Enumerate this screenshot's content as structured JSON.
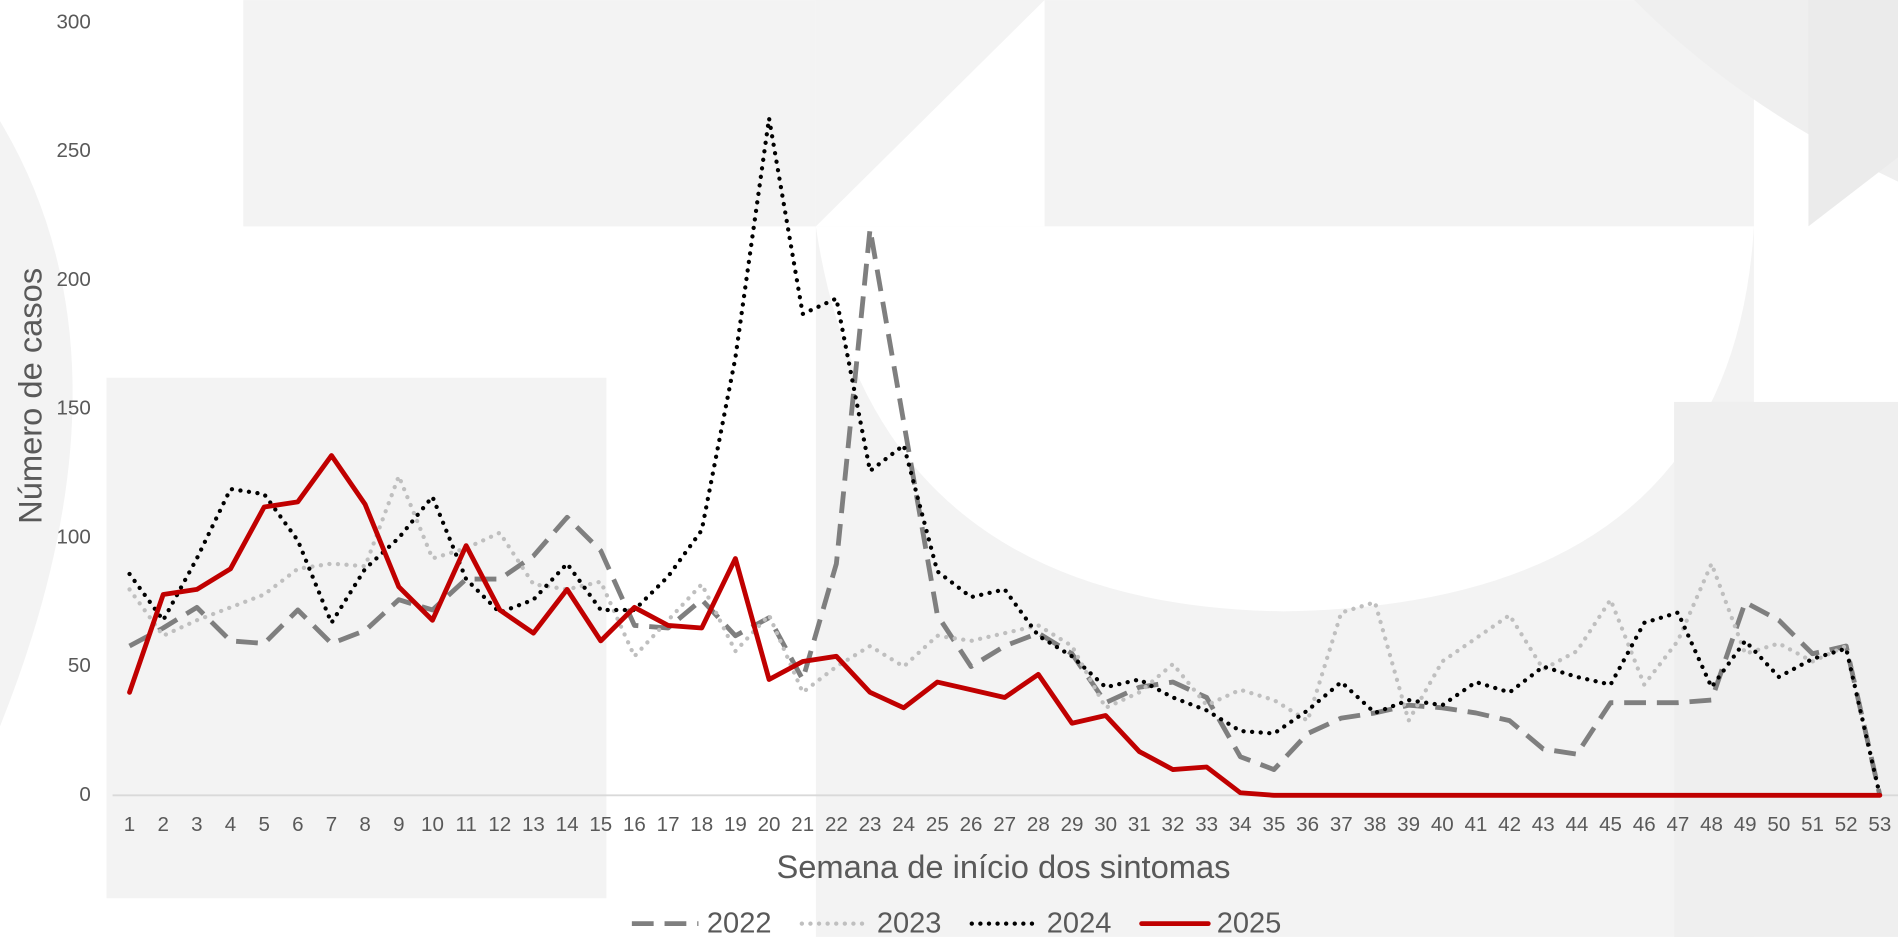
{
  "chart_data": {
    "type": "line",
    "xlabel": "Semana de início dos sintomas",
    "ylabel": "Número de casos",
    "categories": [
      "1",
      "2",
      "3",
      "4",
      "5",
      "6",
      "7",
      "8",
      "9",
      "10",
      "11",
      "12",
      "13",
      "14",
      "15",
      "16",
      "17",
      "18",
      "19",
      "20",
      "21",
      "22",
      "23",
      "24",
      "25",
      "26",
      "27",
      "28",
      "29",
      "30",
      "31",
      "32",
      "33",
      "34",
      "35",
      "36",
      "37",
      "38",
      "39",
      "40",
      "41",
      "42",
      "43",
      "44",
      "45",
      "46",
      "47",
      "48",
      "49",
      "50",
      "51",
      "52",
      "53"
    ],
    "ylim": [
      0,
      300
    ],
    "yticks": [
      0,
      50,
      100,
      150,
      200,
      250,
      300
    ],
    "grid": false,
    "legend": "bottom",
    "series": [
      {
        "name": "2022",
        "color": "#7f7f7f",
        "dash": "dashed",
        "values": [
          58,
          65,
          73,
          60,
          59,
          72,
          59,
          64,
          76,
          72,
          84,
          84,
          93,
          108,
          95,
          66,
          65,
          76,
          62,
          69,
          45,
          90,
          220,
          145,
          70,
          50,
          58,
          63,
          55,
          36,
          42,
          44,
          38,
          15,
          10,
          24,
          30,
          32,
          35,
          34,
          32,
          29,
          18,
          16,
          36,
          36,
          36,
          37,
          75,
          68,
          55,
          58,
          0
        ]
      },
      {
        "name": "2023",
        "color": "#bfbfbf",
        "dash": "dotted",
        "values": [
          80,
          62,
          68,
          73,
          78,
          88,
          90,
          89,
          124,
          92,
          96,
          102,
          82,
          80,
          83,
          54,
          68,
          82,
          56,
          70,
          40,
          50,
          58,
          50,
          62,
          60,
          63,
          66,
          58,
          34,
          40,
          51,
          35,
          41,
          37,
          29,
          71,
          75,
          29,
          52,
          61,
          70,
          49,
          56,
          76,
          43,
          60,
          90,
          55,
          59,
          52,
          58,
          0
        ]
      },
      {
        "name": "2024",
        "color": "#000000",
        "dash": "dotted",
        "values": [
          86,
          68,
          92,
          119,
          117,
          99,
          67,
          88,
          100,
          116,
          84,
          71,
          76,
          90,
          72,
          72,
          85,
          103,
          170,
          263,
          187,
          193,
          126,
          136,
          87,
          77,
          80,
          62,
          54,
          42,
          45,
          38,
          33,
          25,
          24,
          33,
          44,
          32,
          37,
          35,
          44,
          40,
          50,
          46,
          43,
          67,
          71,
          42,
          60,
          46,
          53,
          57,
          0
        ]
      },
      {
        "name": "2025",
        "color": "#c00000",
        "dash": "solid",
        "values": [
          40,
          78,
          80,
          88,
          112,
          114,
          132,
          113,
          81,
          68,
          97,
          72,
          63,
          80,
          60,
          73,
          66,
          65,
          92,
          45,
          52,
          54,
          40,
          34,
          44,
          41,
          38,
          47,
          28,
          31,
          17,
          10,
          11,
          1,
          0,
          0,
          0,
          0,
          0,
          0,
          0,
          0,
          0,
          0,
          0,
          0,
          0,
          0,
          0,
          0,
          0,
          0,
          0
        ]
      }
    ]
  }
}
